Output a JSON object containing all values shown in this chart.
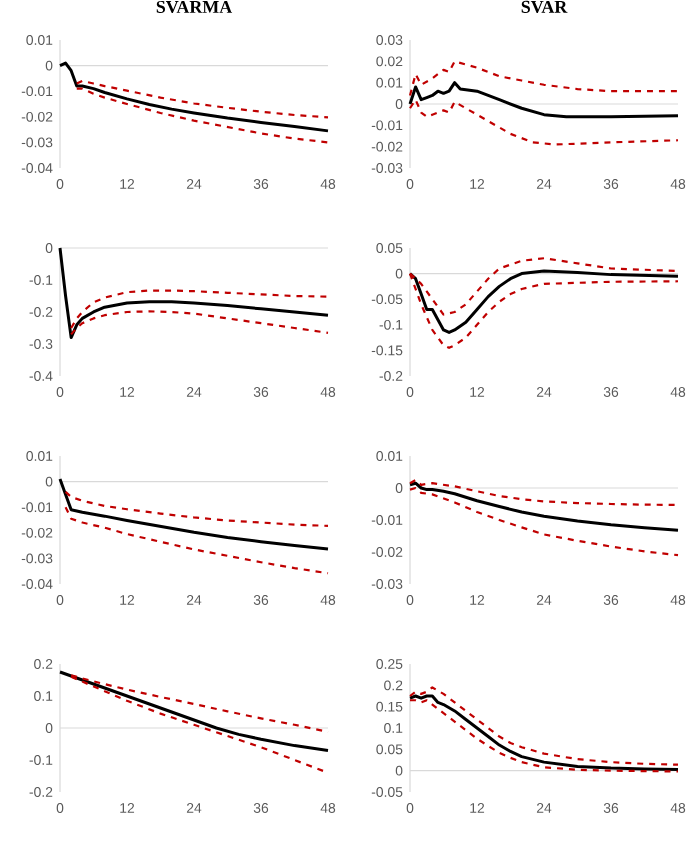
{
  "chart_data": [
    {
      "type": "line",
      "title": "SVARMA",
      "xlim": [
        0,
        48
      ],
      "xticks": [
        0,
        12,
        24,
        36,
        48
      ],
      "ylim": [
        -0.04,
        0.01
      ],
      "yticks": [
        -0.04,
        -0.03,
        -0.02,
        -0.01,
        0,
        0.01
      ],
      "series": [
        {
          "color": "#000000",
          "line_style": "solid",
          "x": [
            0,
            1,
            2,
            3,
            4,
            6,
            8,
            12,
            16,
            20,
            24,
            30,
            36,
            42,
            48
          ],
          "values": [
            0,
            0.001,
            -0.002,
            -0.008,
            -0.008,
            -0.009,
            -0.0105,
            -0.013,
            -0.0152,
            -0.017,
            -0.0185,
            -0.0205,
            -0.0222,
            -0.0238,
            -0.0255
          ]
        },
        {
          "color": "#c00000",
          "line_style": "dashed",
          "x": [
            3,
            4,
            6,
            8,
            12,
            18,
            24,
            30,
            36,
            42,
            48
          ],
          "values": [
            -0.007,
            -0.006,
            -0.007,
            -0.008,
            -0.0098,
            -0.0125,
            -0.0148,
            -0.0165,
            -0.018,
            -0.0193,
            -0.0202
          ]
        },
        {
          "color": "#c00000",
          "line_style": "dashed",
          "x": [
            3,
            4,
            6,
            8,
            12,
            18,
            24,
            30,
            36,
            42,
            48
          ],
          "values": [
            -0.009,
            -0.009,
            -0.011,
            -0.0125,
            -0.015,
            -0.0185,
            -0.0215,
            -0.024,
            -0.0265,
            -0.0285,
            -0.03
          ]
        }
      ]
    },
    {
      "type": "line",
      "title": "SVAR",
      "xlim": [
        0,
        48
      ],
      "xticks": [
        0,
        12,
        24,
        36,
        48
      ],
      "ylim": [
        -0.03,
        0.03
      ],
      "yticks": [
        -0.03,
        -0.02,
        -0.01,
        0,
        0.01,
        0.02,
        0.03
      ],
      "series": [
        {
          "color": "#000000",
          "line_style": "solid",
          "x": [
            0,
            1,
            2,
            3,
            4,
            5,
            6,
            7,
            8,
            9,
            12,
            16,
            20,
            24,
            28,
            36,
            48
          ],
          "values": [
            0,
            0.008,
            0.002,
            0.003,
            0.004,
            0.006,
            0.005,
            0.006,
            0.01,
            0.007,
            0.006,
            0.002,
            -0.002,
            -0.005,
            -0.006,
            -0.006,
            -0.0055
          ]
        },
        {
          "color": "#c00000",
          "line_style": "dashed",
          "x": [
            0,
            1,
            2,
            4,
            6,
            7,
            8,
            12,
            16,
            20,
            24,
            30,
            36,
            48
          ],
          "values": [
            0.004,
            0.014,
            0.009,
            0.012,
            0.016,
            0.015,
            0.02,
            0.017,
            0.013,
            0.011,
            0.009,
            0.007,
            0.006,
            0.006
          ]
        },
        {
          "color": "#c00000",
          "line_style": "dashed",
          "x": [
            0,
            1,
            2,
            3,
            4,
            6,
            7,
            8,
            10,
            14,
            18,
            22,
            26,
            36,
            48
          ],
          "values": [
            -0.002,
            0.002,
            -0.004,
            -0.006,
            -0.005,
            -0.003,
            -0.004,
            0.001,
            -0.002,
            -0.008,
            -0.014,
            -0.018,
            -0.019,
            -0.018,
            -0.017
          ]
        }
      ]
    },
    {
      "type": "line",
      "xlim": [
        0,
        48
      ],
      "xticks": [
        0,
        12,
        24,
        36,
        48
      ],
      "ylim": [
        -0.4,
        0
      ],
      "yticks": [
        -0.4,
        -0.3,
        -0.2,
        -0.1,
        0
      ],
      "series": [
        {
          "color": "#000000",
          "line_style": "solid",
          "x": [
            0,
            1,
            2,
            3,
            4,
            6,
            8,
            12,
            16,
            20,
            24,
            30,
            36,
            42,
            48
          ],
          "values": [
            0,
            -0.15,
            -0.28,
            -0.24,
            -0.22,
            -0.2,
            -0.185,
            -0.172,
            -0.168,
            -0.168,
            -0.172,
            -0.18,
            -0.19,
            -0.2,
            -0.21
          ]
        },
        {
          "color": "#c00000",
          "line_style": "dashed",
          "x": [
            2,
            3,
            4,
            6,
            8,
            12,
            16,
            20,
            24,
            30,
            36,
            42,
            48
          ],
          "values": [
            -0.25,
            -0.22,
            -0.2,
            -0.17,
            -0.155,
            -0.138,
            -0.133,
            -0.133,
            -0.135,
            -0.14,
            -0.145,
            -0.15,
            -0.152
          ]
        },
        {
          "color": "#c00000",
          "line_style": "dashed",
          "x": [
            2,
            3,
            4,
            6,
            8,
            12,
            16,
            20,
            24,
            30,
            36,
            42,
            48
          ],
          "values": [
            -0.27,
            -0.25,
            -0.235,
            -0.22,
            -0.21,
            -0.2,
            -0.198,
            -0.2,
            -0.205,
            -0.22,
            -0.235,
            -0.25,
            -0.265
          ]
        }
      ]
    },
    {
      "type": "line",
      "xlim": [
        0,
        48
      ],
      "xticks": [
        0,
        12,
        24,
        36,
        48
      ],
      "ylim": [
        -0.2,
        0.05
      ],
      "yticks": [
        -0.2,
        -0.15,
        -0.1,
        -0.05,
        0,
        0.05
      ],
      "series": [
        {
          "color": "#000000",
          "line_style": "solid",
          "x": [
            0,
            1,
            2,
            3,
            4,
            5,
            6,
            7,
            8,
            10,
            12,
            14,
            16,
            18,
            20,
            24,
            30,
            36,
            48
          ],
          "values": [
            0,
            -0.01,
            -0.04,
            -0.07,
            -0.07,
            -0.09,
            -0.11,
            -0.115,
            -0.11,
            -0.095,
            -0.07,
            -0.045,
            -0.025,
            -0.01,
            0,
            0.005,
            0.002,
            -0.002,
            -0.005
          ]
        },
        {
          "color": "#c00000",
          "line_style": "dashed",
          "x": [
            0,
            2,
            4,
            6,
            8,
            10,
            12,
            14,
            16,
            20,
            24,
            30,
            36,
            48
          ],
          "values": [
            0,
            -0.02,
            -0.05,
            -0.08,
            -0.075,
            -0.06,
            -0.035,
            -0.01,
            0.01,
            0.025,
            0.03,
            0.02,
            0.01,
            0.005
          ]
        },
        {
          "color": "#c00000",
          "line_style": "dashed",
          "x": [
            0,
            2,
            4,
            6,
            7,
            8,
            10,
            12,
            14,
            16,
            18,
            20,
            24,
            30,
            36,
            48
          ],
          "values": [
            0,
            -0.06,
            -0.11,
            -0.14,
            -0.145,
            -0.14,
            -0.125,
            -0.1,
            -0.075,
            -0.055,
            -0.04,
            -0.03,
            -0.02,
            -0.018,
            -0.016,
            -0.015
          ]
        }
      ]
    },
    {
      "type": "line",
      "xlim": [
        0,
        48
      ],
      "xticks": [
        0,
        12,
        24,
        36,
        48
      ],
      "ylim": [
        -0.04,
        0.01
      ],
      "yticks": [
        -0.04,
        -0.03,
        -0.02,
        -0.01,
        0,
        0.01
      ],
      "series": [
        {
          "color": "#000000",
          "line_style": "solid",
          "x": [
            0,
            1,
            2,
            4,
            8,
            12,
            18,
            24,
            30,
            36,
            42,
            48
          ],
          "values": [
            0.001,
            -0.005,
            -0.011,
            -0.012,
            -0.0135,
            -0.0152,
            -0.0175,
            -0.0198,
            -0.0218,
            -0.0235,
            -0.025,
            -0.0263
          ]
        },
        {
          "color": "#c00000",
          "line_style": "dashed",
          "x": [
            1,
            2,
            4,
            8,
            12,
            18,
            24,
            30,
            36,
            42,
            48
          ],
          "values": [
            -0.004,
            -0.006,
            -0.0075,
            -0.0095,
            -0.0108,
            -0.0125,
            -0.014,
            -0.0152,
            -0.016,
            -0.0168,
            -0.0173
          ]
        },
        {
          "color": "#c00000",
          "line_style": "dashed",
          "x": [
            1,
            2,
            4,
            8,
            12,
            18,
            24,
            30,
            36,
            42,
            48
          ],
          "values": [
            -0.01,
            -0.0145,
            -0.016,
            -0.018,
            -0.0205,
            -0.0235,
            -0.0265,
            -0.029,
            -0.0315,
            -0.0338,
            -0.0358
          ]
        }
      ]
    },
    {
      "type": "line",
      "xlim": [
        0,
        48
      ],
      "xticks": [
        0,
        12,
        24,
        36,
        48
      ],
      "ylim": [
        -0.03,
        0.01
      ],
      "yticks": [
        -0.03,
        -0.02,
        -0.01,
        0,
        0.01
      ],
      "series": [
        {
          "color": "#000000",
          "line_style": "solid",
          "x": [
            0,
            1,
            2,
            3,
            4,
            6,
            8,
            12,
            16,
            20,
            24,
            30,
            36,
            42,
            48
          ],
          "values": [
            0.001,
            0.0015,
            0,
            -0.0005,
            -0.0005,
            -0.001,
            -0.0018,
            -0.004,
            -0.0058,
            -0.0075,
            -0.0088,
            -0.0103,
            -0.0115,
            -0.0124,
            -0.0132
          ]
        },
        {
          "color": "#c00000",
          "line_style": "dashed",
          "x": [
            0,
            1,
            2,
            4,
            8,
            12,
            16,
            20,
            24,
            30,
            36,
            42,
            48
          ],
          "values": [
            0.0015,
            0.0025,
            0.001,
            0.0015,
            0.0005,
            -0.001,
            -0.0025,
            -0.0035,
            -0.0042,
            -0.0047,
            -0.005,
            -0.0052,
            -0.0053
          ]
        },
        {
          "color": "#c00000",
          "line_style": "dashed",
          "x": [
            0,
            1,
            2,
            4,
            8,
            12,
            16,
            20,
            24,
            30,
            36,
            42,
            48
          ],
          "values": [
            -0.0005,
            0,
            -0.0015,
            -0.002,
            -0.0045,
            -0.0075,
            -0.01,
            -0.0123,
            -0.0145,
            -0.0165,
            -0.0183,
            -0.0198,
            -0.021
          ]
        }
      ]
    },
    {
      "type": "line",
      "xlim": [
        0,
        48
      ],
      "xticks": [
        0,
        12,
        24,
        36,
        48
      ],
      "ylim": [
        -0.2,
        0.2
      ],
      "yticks": [
        -0.2,
        -0.1,
        0,
        0.1,
        0.2
      ],
      "series": [
        {
          "color": "#000000",
          "line_style": "solid",
          "x": [
            0,
            4,
            8,
            12,
            16,
            20,
            24,
            28,
            32,
            36,
            42,
            48
          ],
          "values": [
            0.175,
            0.15,
            0.125,
            0.1,
            0.075,
            0.05,
            0.025,
            0,
            -0.02,
            -0.035,
            -0.055,
            -0.07
          ]
        },
        {
          "color": "#c00000",
          "line_style": "dashed",
          "x": [
            2,
            4,
            8,
            12,
            18,
            24,
            30,
            36,
            42,
            48
          ],
          "values": [
            0.165,
            0.155,
            0.137,
            0.12,
            0.097,
            0.075,
            0.052,
            0.03,
            0.01,
            -0.012
          ]
        },
        {
          "color": "#c00000",
          "line_style": "dashed",
          "x": [
            2,
            4,
            8,
            12,
            18,
            24,
            30,
            36,
            42,
            48
          ],
          "values": [
            0.16,
            0.145,
            0.115,
            0.085,
            0.045,
            0.01,
            -0.025,
            -0.06,
            -0.1,
            -0.14
          ]
        }
      ]
    },
    {
      "type": "line",
      "xlim": [
        0,
        48
      ],
      "xticks": [
        0,
        12,
        24,
        36,
        48
      ],
      "ylim": [
        -0.05,
        0.25
      ],
      "yticks": [
        -0.05,
        0,
        0.05,
        0.1,
        0.15,
        0.2,
        0.25
      ],
      "series": [
        {
          "color": "#000000",
          "line_style": "solid",
          "x": [
            0,
            1,
            2,
            3,
            4,
            5,
            6,
            8,
            10,
            12,
            14,
            16,
            18,
            20,
            24,
            30,
            36,
            42,
            48
          ],
          "values": [
            0.17,
            0.175,
            0.17,
            0.175,
            0.175,
            0.16,
            0.155,
            0.14,
            0.12,
            0.1,
            0.08,
            0.06,
            0.045,
            0.033,
            0.02,
            0.01,
            0.006,
            0.004,
            0.003
          ]
        },
        {
          "color": "#c00000",
          "line_style": "dashed",
          "x": [
            0,
            1,
            2,
            3,
            4,
            6,
            8,
            10,
            12,
            14,
            16,
            18,
            20,
            24,
            30,
            36,
            42,
            48
          ],
          "values": [
            0.175,
            0.185,
            0.18,
            0.185,
            0.195,
            0.18,
            0.16,
            0.14,
            0.12,
            0.1,
            0.08,
            0.065,
            0.055,
            0.04,
            0.027,
            0.02,
            0.016,
            0.014
          ]
        },
        {
          "color": "#c00000",
          "line_style": "dashed",
          "x": [
            0,
            1,
            2,
            3,
            4,
            6,
            8,
            10,
            12,
            14,
            16,
            18,
            20,
            24,
            30,
            36,
            42,
            48
          ],
          "values": [
            0.165,
            0.165,
            0.16,
            0.165,
            0.155,
            0.135,
            0.115,
            0.095,
            0.075,
            0.058,
            0.042,
            0.03,
            0.02,
            0.008,
            0.002,
            0,
            -0.001,
            -0.002
          ]
        }
      ]
    }
  ]
}
